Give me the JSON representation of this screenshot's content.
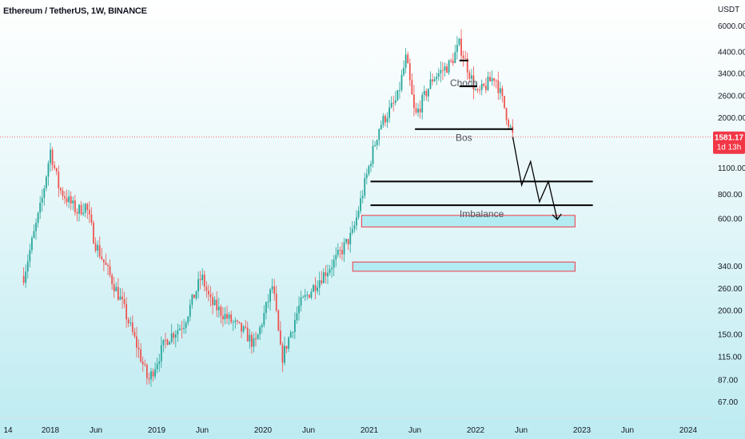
{
  "header": {
    "title": "Ethereum / TetherUS, 1W, BINANCE"
  },
  "price_badge": {
    "price": "1581.17",
    "countdown": "1d 13h",
    "color": "#f23645"
  },
  "colors": {
    "up": "#26a69a",
    "down": "#ef5350",
    "zone_fill": "#b2ebf2",
    "zone_border": "#f23645",
    "line": "#000000"
  },
  "chart_data": {
    "type": "candlestick",
    "title": "Ethereum / TetherUS, 1W, BINANCE",
    "y_scale": "log",
    "ylim": [
      57,
      7000
    ],
    "y_unit": "USDT",
    "current_price": 1581.17,
    "y_ticks": [
      "6000.00",
      "4400.00",
      "3400.00",
      "2600.00",
      "2000.00",
      "1100.00",
      "800.00",
      "600.00",
      "340.00",
      "260.00",
      "200.00",
      "150.00",
      "115.00",
      "87.00",
      "67.00"
    ],
    "x_ticks": [
      "14",
      "2018",
      "Jun",
      "2019",
      "Jun",
      "2020",
      "Jun",
      "2021",
      "Jun",
      "2022",
      "Jun",
      "2023",
      "Jun",
      "2024"
    ],
    "price_path": [
      [
        "2017-10",
        300
      ],
      [
        "2017-12",
        720
      ],
      [
        "2018-01",
        1350
      ],
      [
        "2018-02",
        850
      ],
      [
        "2018-04",
        650
      ],
      [
        "2018-05",
        700
      ],
      [
        "2018-06",
        450
      ],
      [
        "2018-08",
        280
      ],
      [
        "2018-09",
        220
      ],
      [
        "2018-11",
        120
      ],
      [
        "2018-12",
        85
      ],
      [
        "2019-02",
        140
      ],
      [
        "2019-04",
        170
      ],
      [
        "2019-06",
        300
      ],
      [
        "2019-07",
        220
      ],
      [
        "2019-09",
        180
      ],
      [
        "2019-11",
        150
      ],
      [
        "2019-12",
        130
      ],
      [
        "2020-02",
        270
      ],
      [
        "2020-03",
        110
      ],
      [
        "2020-05",
        210
      ],
      [
        "2020-07",
        280
      ],
      [
        "2020-09",
        360
      ],
      [
        "2020-11",
        500
      ],
      [
        "2021-01",
        1200
      ],
      [
        "2021-02",
        1800
      ],
      [
        "2021-04",
        2500
      ],
      [
        "2021-05",
        4100
      ],
      [
        "2021-06",
        2000
      ],
      [
        "2021-08",
        3200
      ],
      [
        "2021-10",
        3800
      ],
      [
        "2021-11",
        4800
      ],
      [
        "2022-01",
        2600
      ],
      [
        "2022-03",
        3300
      ],
      [
        "2022-05",
        1600
      ]
    ],
    "projection": [
      [
        "2022-05",
        1581
      ],
      [
        "2022-06",
        890
      ],
      [
        "2022-07",
        1180
      ],
      [
        "2022-08",
        730
      ],
      [
        "2022-09",
        930
      ],
      [
        "2022-10",
        590
      ]
    ],
    "levels": [
      {
        "label": "Choch",
        "y": 3950,
        "from": "2021-11",
        "to": "2021-12"
      },
      {
        "label": "",
        "y": 2900,
        "from": "2021-11",
        "to": "2022-01"
      },
      {
        "label": "Bos",
        "y": 1740,
        "from": "2021-06",
        "to": "2022-05"
      },
      {
        "label": "",
        "y": 930,
        "from": "2021-01",
        "to": "2023-02"
      },
      {
        "label": "Imbalance",
        "y": 700,
        "from": "2021-01",
        "to": "2023-02"
      }
    ],
    "zones": [
      {
        "y_top": 620,
        "y_bottom": 540,
        "from": "2020-12",
        "to": "2022-12"
      },
      {
        "y_top": 355,
        "y_bottom": 318,
        "from": "2020-11",
        "to": "2022-12"
      }
    ],
    "annotations": [
      "Choch",
      "Bos",
      "Imbalance"
    ]
  }
}
